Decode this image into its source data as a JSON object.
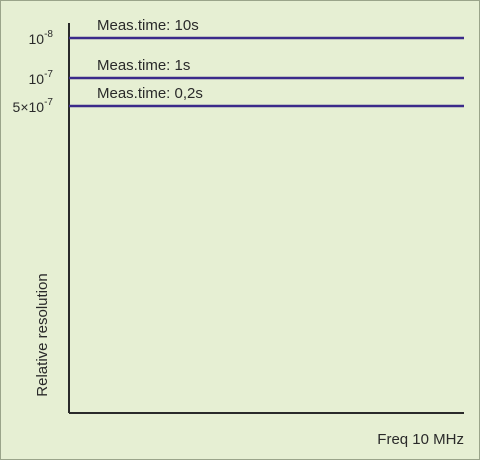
{
  "colors": {
    "background": "#e6efd3",
    "axis": "#2a2a2a",
    "series_line": "#3b2a8a",
    "text": "#2a2a2a"
  },
  "chart_data": {
    "type": "line",
    "xlabel": "Freq 10 MHz",
    "ylabel": "Relative resolution",
    "scale": "log",
    "series": [
      {
        "label": "Meas.time: 10s",
        "value": 1e-08,
        "tick": {
          "base": "10",
          "exp": "-8"
        }
      },
      {
        "label": "Meas.time: 1s",
        "value": 1e-07,
        "tick": {
          "base": "10",
          "exp": "-7"
        }
      },
      {
        "label": "Meas.time: 0,2s",
        "value": 5e-07,
        "tick": {
          "base": "5×10",
          "exp": "-7"
        }
      }
    ]
  }
}
